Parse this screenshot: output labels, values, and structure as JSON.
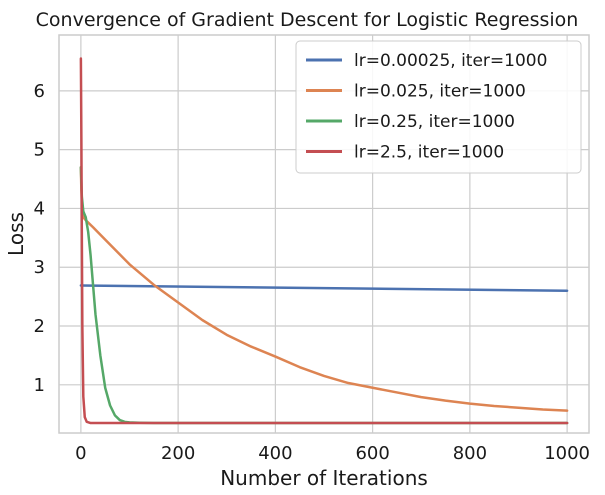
{
  "chart_data": {
    "type": "line",
    "title": "Convergence of Gradient Descent for Logistic Regression",
    "xlabel": "Number of Iterations",
    "ylabel": "Loss",
    "xlim": [
      -45,
      1045
    ],
    "ylim": [
      0.18,
      6.95
    ],
    "xticks": [
      0,
      200,
      400,
      600,
      800,
      1000
    ],
    "yticks": [
      1,
      2,
      3,
      4,
      5,
      6
    ],
    "grid": true,
    "legend_position": "top-right",
    "series": [
      {
        "name": "lr=0.00025, iter=1000",
        "color": "#4c72b0",
        "x": [
          0,
          1000
        ],
        "y": [
          2.69,
          2.6
        ]
      },
      {
        "name": "lr=0.025, iter=1000",
        "color": "#dd8452",
        "x": [
          0,
          1,
          3,
          5,
          10,
          25,
          50,
          100,
          150,
          200,
          250,
          300,
          350,
          400,
          450,
          500,
          550,
          600,
          650,
          700,
          750,
          800,
          850,
          900,
          950,
          1000
        ],
        "y": [
          4.7,
          4.3,
          3.95,
          3.85,
          3.8,
          3.68,
          3.47,
          3.05,
          2.7,
          2.4,
          2.1,
          1.85,
          1.65,
          1.48,
          1.3,
          1.15,
          1.03,
          0.95,
          0.87,
          0.79,
          0.73,
          0.68,
          0.64,
          0.61,
          0.58,
          0.56
        ]
      },
      {
        "name": "lr=0.25, iter=1000",
        "color": "#55a868",
        "x": [
          0,
          2,
          5,
          10,
          15,
          20,
          25,
          30,
          40,
          50,
          60,
          70,
          80,
          90,
          100,
          120,
          150,
          200,
          1000
        ],
        "y": [
          4.7,
          4.2,
          3.95,
          3.85,
          3.6,
          3.2,
          2.7,
          2.2,
          1.5,
          0.95,
          0.65,
          0.48,
          0.4,
          0.37,
          0.36,
          0.355,
          0.35,
          0.35,
          0.35
        ]
      },
      {
        "name": "lr=2.5, iter=1000",
        "color": "#c44e52",
        "x": [
          0,
          1,
          2,
          3,
          5,
          8,
          12,
          20,
          50,
          1000
        ],
        "y": [
          6.55,
          5.2,
          3.5,
          2.0,
          0.8,
          0.45,
          0.37,
          0.35,
          0.35,
          0.35
        ]
      }
    ]
  }
}
